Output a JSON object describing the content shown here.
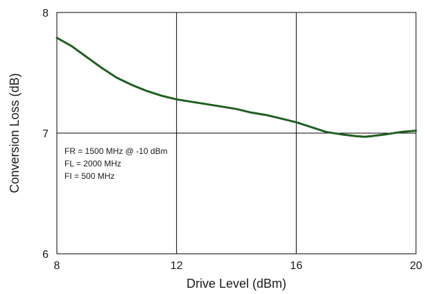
{
  "chart_data": {
    "type": "line",
    "xlabel": "Drive Level (dBm)",
    "ylabel": "Conversion Loss (dB)",
    "xlim": [
      8,
      20
    ],
    "ylim": [
      6,
      8
    ],
    "x_ticks": [
      "8",
      "12",
      "16",
      "20"
    ],
    "y_ticks": [
      "6",
      "7",
      "8"
    ],
    "grid": true,
    "annotations": [
      "FR = 1500 MHz @ -10 dBm",
      "FL = 2000 MHz",
      "FI = 500 MHz"
    ],
    "series": [
      {
        "color": "#1f5e1f",
        "x": [
          8.0,
          8.5,
          9.0,
          9.5,
          10.0,
          10.5,
          11.0,
          11.5,
          12.0,
          12.5,
          13.0,
          13.5,
          14.0,
          14.5,
          15.0,
          15.5,
          16.0,
          16.5,
          17.0,
          17.5,
          18.0,
          18.3,
          18.5,
          19.0,
          19.5,
          20.0
        ],
        "y": [
          7.79,
          7.72,
          7.63,
          7.54,
          7.46,
          7.4,
          7.35,
          7.31,
          7.28,
          7.26,
          7.24,
          7.22,
          7.2,
          7.17,
          7.15,
          7.12,
          7.09,
          7.05,
          7.01,
          6.99,
          6.975,
          6.97,
          6.975,
          6.99,
          7.01,
          7.02
        ]
      }
    ]
  }
}
